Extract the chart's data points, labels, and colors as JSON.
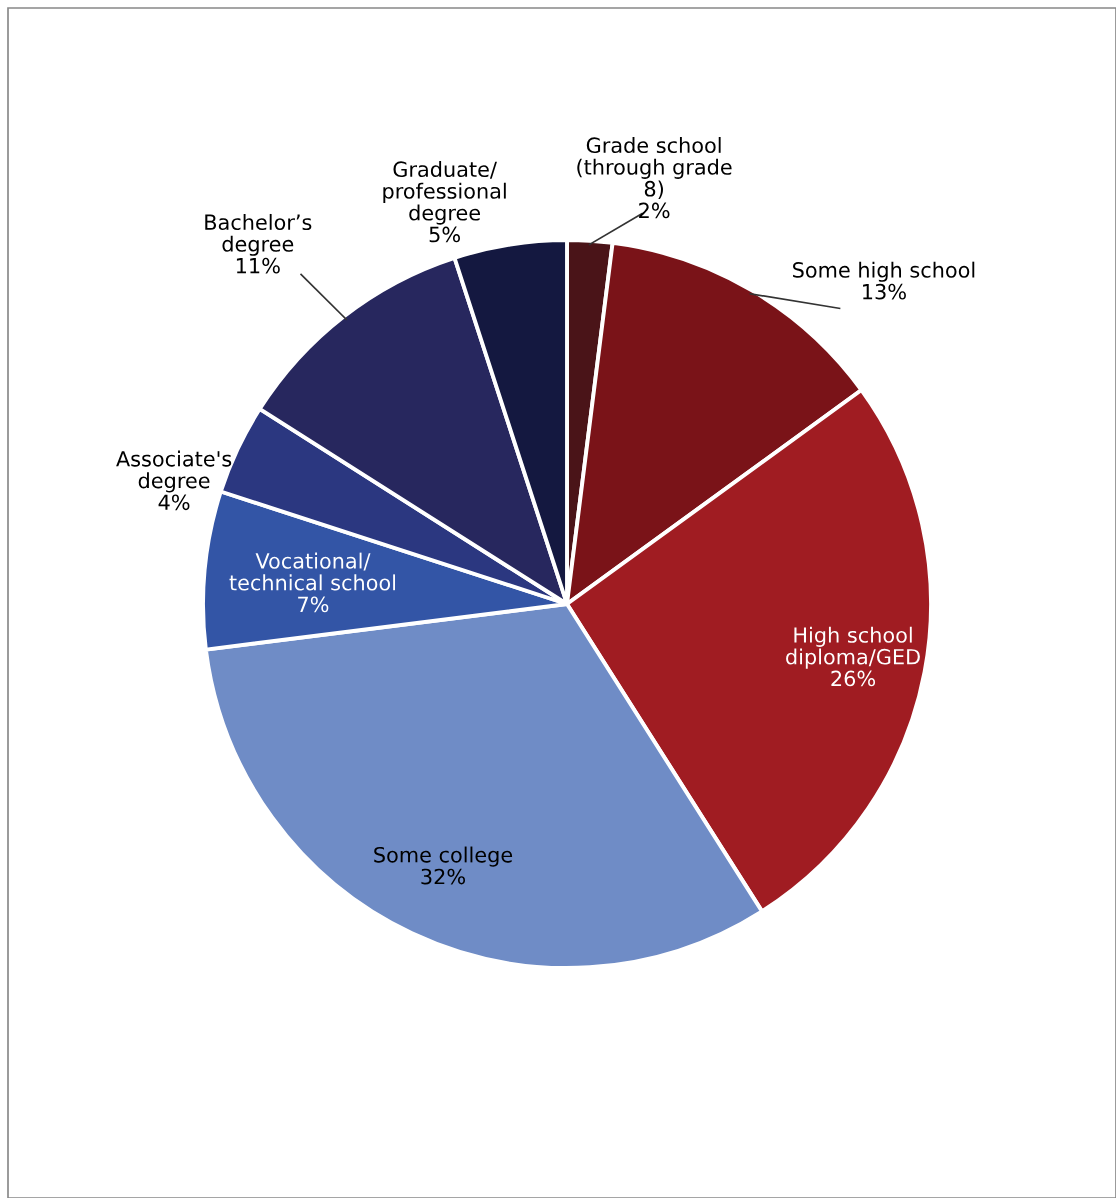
{
  "chart_data": {
    "type": "pie",
    "categories": [
      "Grade school\n(through grade\n8)",
      "Some high school",
      "High school\ndiploma/GED",
      "Some college",
      "Vocational/\ntechnical school",
      "Associate's\ndegree",
      "Bachelor’s\ndegree",
      "Graduate/\nprofessional\ndegree"
    ],
    "values": [
      2,
      13,
      26,
      32,
      7,
      4,
      11,
      5
    ],
    "value_labels": [
      "2%",
      "13%",
      "26%",
      "32%",
      "7%",
      "4%",
      "11%",
      "5%"
    ],
    "colors": [
      "#4a1418",
      "#7a1318",
      "#a01c22",
      "#6f8cc6",
      "#3355a6",
      "#2b3780",
      "#27275e",
      "#141840"
    ]
  }
}
